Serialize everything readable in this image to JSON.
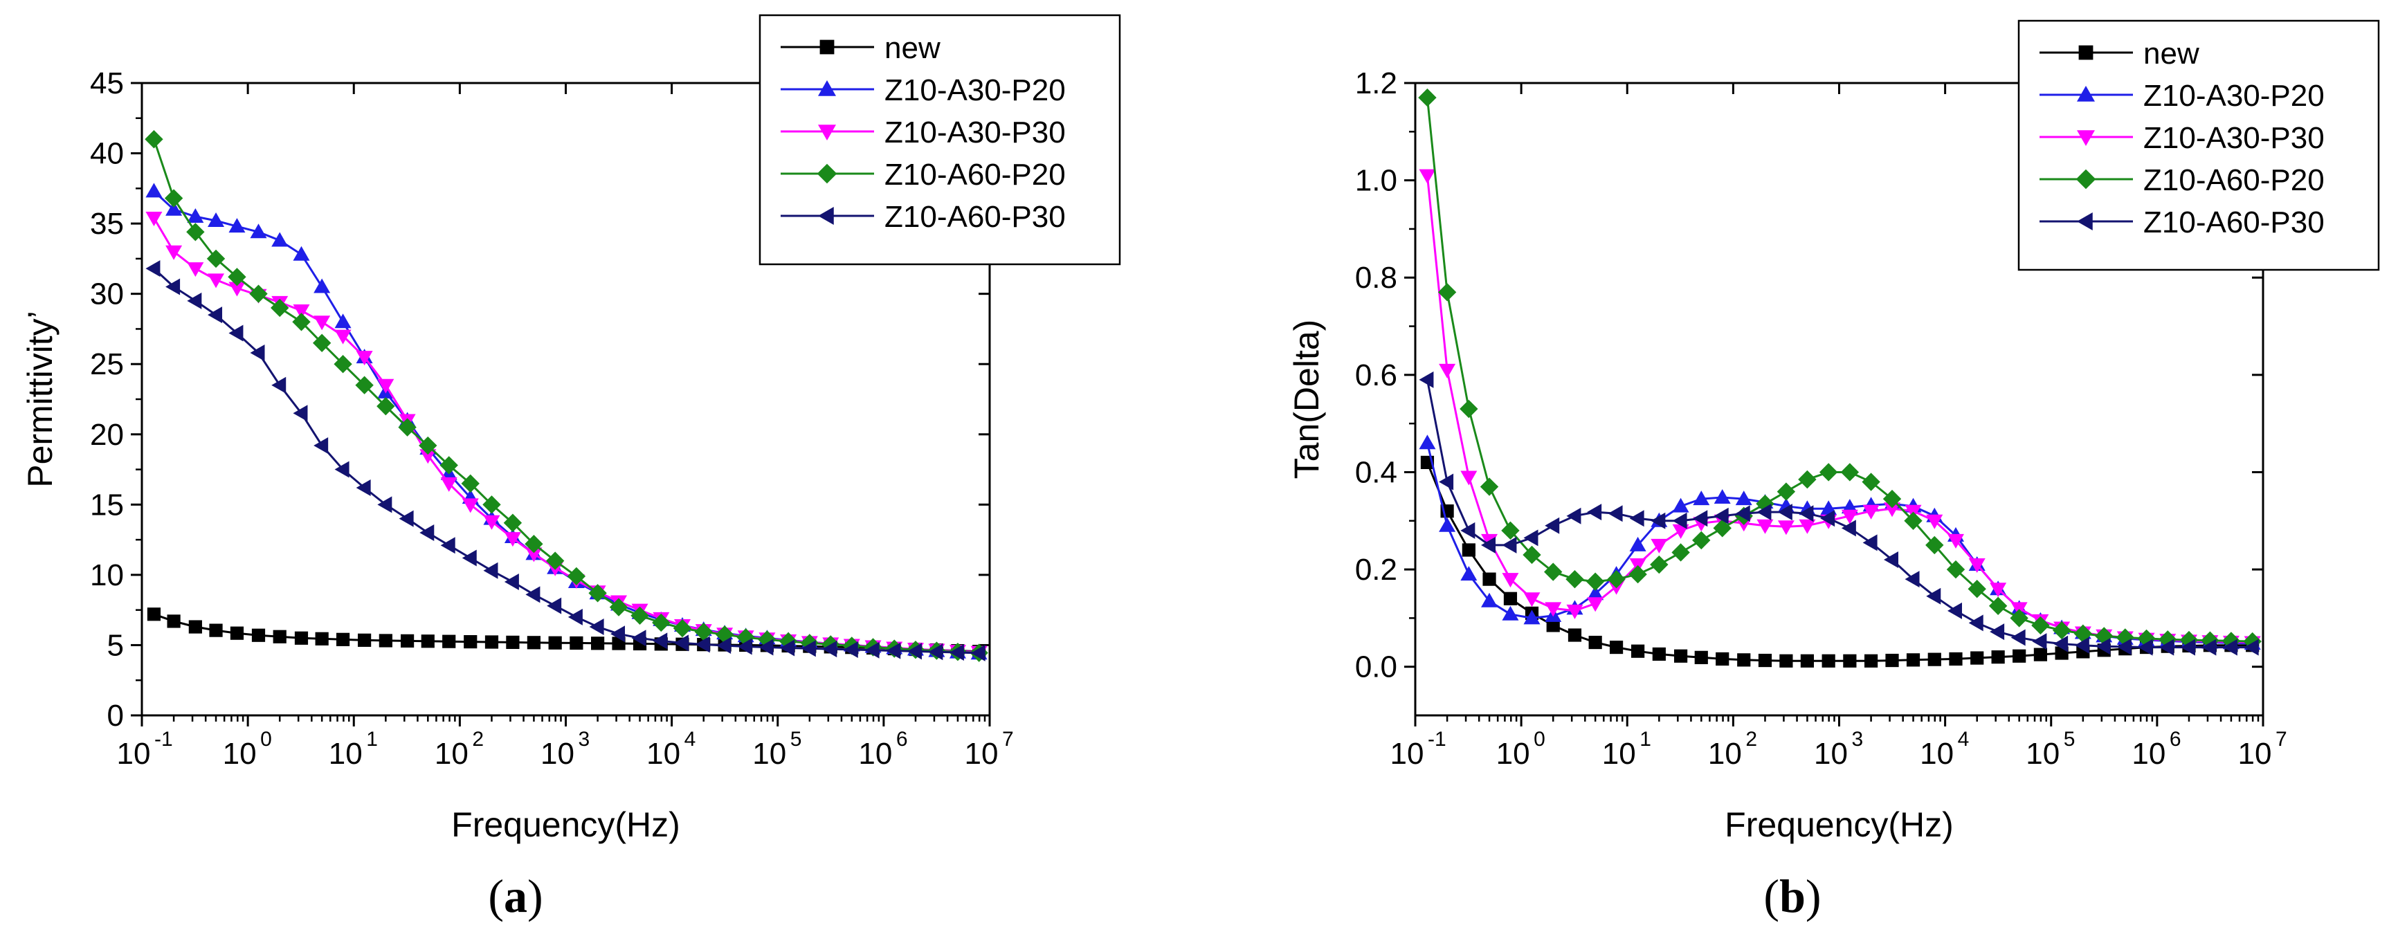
{
  "figure": {
    "captions": [
      {
        "label": "a",
        "open": "(",
        "close": ")"
      },
      {
        "label": "b",
        "open": "(",
        "close": ")"
      }
    ]
  },
  "colors": {
    "new": "#000000",
    "Z10-A30-P20": "#1f1fe8",
    "Z10-A30-P30": "#ff00ff",
    "Z10-A60-P20": "#1a8a1a",
    "Z10-A60-P30": "#131370"
  },
  "chart_data": [
    {
      "panel": "a",
      "type": "line",
      "xscale": "log",
      "xlabel": "Frequency(Hz)",
      "ylabel": "Permittivity’",
      "xlim": [
        0.1,
        10000000
      ],
      "ylim": [
        0,
        45
      ],
      "yticks": [
        0,
        5,
        10,
        15,
        20,
        25,
        30,
        35,
        40,
        45
      ],
      "xtick_exponents": [
        -1,
        0,
        1,
        2,
        3,
        4,
        5,
        6,
        7
      ],
      "legend_position": "top-right",
      "x": [
        0.13,
        0.2,
        0.32,
        0.5,
        0.79,
        1.26,
        2,
        3.2,
        5,
        7.9,
        12.6,
        20,
        32,
        50,
        79,
        126,
        200,
        316,
        500,
        794,
        1260,
        2000,
        3160,
        5000,
        7940,
        12600,
        20000,
        31600,
        50000,
        79400,
        126000,
        200000,
        316000,
        500000,
        794000,
        1260000,
        2000000,
        3160000,
        5000000,
        7940000
      ],
      "series": [
        {
          "name": "new",
          "marker": "square",
          "values": [
            7.2,
            6.7,
            6.3,
            6.05,
            5.85,
            5.7,
            5.6,
            5.5,
            5.45,
            5.4,
            5.35,
            5.32,
            5.3,
            5.28,
            5.26,
            5.24,
            5.22,
            5.2,
            5.18,
            5.16,
            5.15,
            5.13,
            5.12,
            5.1,
            5.08,
            5.06,
            5.04,
            5.02,
            5,
            4.98,
            4.95,
            4.92,
            4.88,
            4.84,
            4.8,
            4.75,
            4.7,
            4.65,
            4.6,
            4.55
          ]
        },
        {
          "name": "Z10-A30-P20",
          "marker": "triangle-up",
          "values": [
            37.3,
            36,
            35.5,
            35.2,
            34.8,
            34.4,
            33.8,
            32.8,
            30.5,
            28,
            25.5,
            23,
            21,
            19,
            17.2,
            15.5,
            14,
            12.7,
            11.5,
            10.5,
            9.5,
            8.7,
            7.9,
            7.3,
            6.8,
            6.4,
            6.1,
            5.85,
            5.65,
            5.5,
            5.35,
            5.22,
            5.1,
            5,
            4.9,
            4.8,
            4.7,
            4.6,
            4.5,
            4.42
          ]
        },
        {
          "name": "Z10-A30-P30",
          "marker": "triangle-down",
          "values": [
            35.4,
            33,
            31.8,
            31,
            30.4,
            29.9,
            29.4,
            28.8,
            28,
            27,
            25.5,
            23.5,
            21,
            18.5,
            16.5,
            15,
            13.8,
            12.6,
            11.5,
            10.5,
            9.6,
            8.8,
            8.1,
            7.5,
            6.9,
            6.4,
            6.05,
            5.8,
            5.6,
            5.45,
            5.32,
            5.2,
            5.1,
            5,
            4.9,
            4.8,
            4.72,
            4.65,
            4.57,
            4.5
          ]
        },
        {
          "name": "Z10-A60-P20",
          "marker": "diamond",
          "values": [
            41,
            36.8,
            34.4,
            32.5,
            31.2,
            30,
            29,
            28,
            26.5,
            25,
            23.5,
            22,
            20.5,
            19.2,
            17.8,
            16.5,
            15,
            13.7,
            12.2,
            11,
            9.9,
            8.7,
            7.7,
            7.1,
            6.6,
            6.2,
            5.95,
            5.75,
            5.55,
            5.4,
            5.27,
            5.15,
            5.05,
            4.95,
            4.85,
            4.75,
            4.67,
            4.6,
            4.52,
            4.45
          ]
        },
        {
          "name": "Z10-A60-P30",
          "marker": "triangle-left",
          "values": [
            31.8,
            30.5,
            29.5,
            28.5,
            27.2,
            25.8,
            23.5,
            21.5,
            19.2,
            17.5,
            16.2,
            15,
            14,
            13,
            12.1,
            11.2,
            10.3,
            9.5,
            8.6,
            7.8,
            7,
            6.3,
            5.8,
            5.5,
            5.3,
            5.15,
            5.05,
            4.97,
            4.9,
            4.85,
            4.8,
            4.76,
            4.72,
            4.68,
            4.64,
            4.6,
            4.56,
            4.52,
            4.48,
            4.44
          ]
        }
      ]
    },
    {
      "panel": "b",
      "type": "line",
      "xscale": "log",
      "xlabel": "Frequency(Hz)",
      "ylabel": "Tan(Delta)",
      "xlim": [
        0.1,
        10000000
      ],
      "ylim": [
        -0.1,
        1.2
      ],
      "yticks": [
        0.0,
        0.2,
        0.4,
        0.6,
        0.8,
        1.0,
        1.2
      ],
      "xtick_exponents": [
        -1,
        0,
        1,
        2,
        3,
        4,
        5,
        6,
        7
      ],
      "legend_position": "top-right",
      "x": [
        0.13,
        0.2,
        0.32,
        0.5,
        0.79,
        1.26,
        2,
        3.2,
        5,
        7.9,
        12.6,
        20,
        32,
        50,
        79,
        126,
        200,
        316,
        500,
        794,
        1260,
        2000,
        3160,
        5000,
        7940,
        12600,
        20000,
        31600,
        50000,
        79400,
        126000,
        200000,
        316000,
        500000,
        794000,
        1260000,
        2000000,
        3160000,
        5000000,
        7940000
      ],
      "series": [
        {
          "name": "new",
          "marker": "square",
          "values": [
            0.42,
            0.32,
            0.24,
            0.18,
            0.14,
            0.11,
            0.085,
            0.065,
            0.05,
            0.04,
            0.032,
            0.026,
            0.022,
            0.019,
            0.016,
            0.014,
            0.013,
            0.012,
            0.012,
            0.012,
            0.012,
            0.012,
            0.013,
            0.014,
            0.015,
            0.016,
            0.018,
            0.02,
            0.022,
            0.025,
            0.028,
            0.031,
            0.034,
            0.037,
            0.04,
            0.042,
            0.043,
            0.044,
            0.044,
            0.044
          ]
        },
        {
          "name": "Z10-A30-P20",
          "marker": "triangle-up",
          "values": [
            0.46,
            0.29,
            0.19,
            0.135,
            0.108,
            0.1,
            0.105,
            0.12,
            0.15,
            0.19,
            0.25,
            0.3,
            0.33,
            0.345,
            0.348,
            0.345,
            0.338,
            0.33,
            0.325,
            0.325,
            0.328,
            0.332,
            0.335,
            0.33,
            0.31,
            0.27,
            0.21,
            0.16,
            0.12,
            0.095,
            0.08,
            0.07,
            0.063,
            0.058,
            0.055,
            0.053,
            0.051,
            0.05,
            0.049,
            0.048
          ]
        },
        {
          "name": "Z10-A30-P30",
          "marker": "triangle-down",
          "values": [
            1.01,
            0.61,
            0.39,
            0.26,
            0.18,
            0.14,
            0.12,
            0.115,
            0.13,
            0.165,
            0.21,
            0.25,
            0.28,
            0.295,
            0.3,
            0.295,
            0.29,
            0.288,
            0.29,
            0.3,
            0.31,
            0.32,
            0.325,
            0.32,
            0.3,
            0.26,
            0.21,
            0.16,
            0.12,
            0.095,
            0.08,
            0.07,
            0.064,
            0.06,
            0.057,
            0.055,
            0.053,
            0.052,
            0.051,
            0.05
          ]
        },
        {
          "name": "Z10-A60-P20",
          "marker": "diamond",
          "values": [
            1.17,
            0.77,
            0.53,
            0.37,
            0.28,
            0.23,
            0.195,
            0.18,
            0.175,
            0.18,
            0.19,
            0.21,
            0.235,
            0.26,
            0.285,
            0.31,
            0.335,
            0.36,
            0.385,
            0.4,
            0.4,
            0.38,
            0.345,
            0.3,
            0.25,
            0.2,
            0.16,
            0.125,
            0.1,
            0.085,
            0.075,
            0.068,
            0.063,
            0.06,
            0.058,
            0.056,
            0.055,
            0.054,
            0.053,
            0.052
          ]
        },
        {
          "name": "Z10-A60-P30",
          "marker": "triangle-left",
          "values": [
            0.59,
            0.38,
            0.28,
            0.25,
            0.25,
            0.265,
            0.29,
            0.31,
            0.318,
            0.315,
            0.305,
            0.3,
            0.3,
            0.305,
            0.31,
            0.315,
            0.318,
            0.318,
            0.315,
            0.305,
            0.285,
            0.255,
            0.22,
            0.18,
            0.145,
            0.115,
            0.09,
            0.072,
            0.06,
            0.052,
            0.047,
            0.044,
            0.042,
            0.041,
            0.04,
            0.04,
            0.04,
            0.04,
            0.04,
            0.04
          ]
        }
      ]
    }
  ]
}
